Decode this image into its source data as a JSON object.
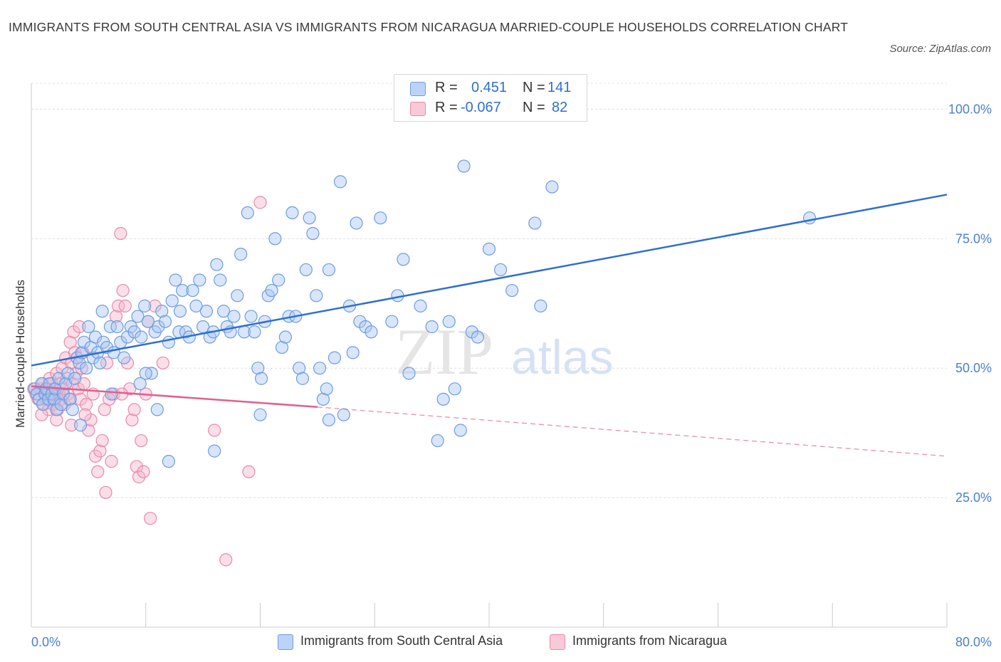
{
  "title": "IMMIGRANTS FROM SOUTH CENTRAL ASIA VS IMMIGRANTS FROM NICARAGUA MARRIED-COUPLE HOUSEHOLDS CORRELATION CHART",
  "source": "Source: ZipAtlas.com",
  "watermark": {
    "zip": "ZIP",
    "atlas": "atlas"
  },
  "colors": {
    "blue_fill": "#a9c6f3",
    "blue_stroke": "#6d9de0",
    "blue_line": "#2f6fce",
    "pink_fill": "#f7b6cb",
    "pink_stroke": "#e98aa8",
    "pink_line": "#e0608e",
    "grid": "#dddddd",
    "axis_text": "#4a7fd0"
  },
  "legend": {
    "rows": [
      {
        "r_label": "R =",
        "r_value": "0.451",
        "n_label": "N =",
        "n_value": "141"
      },
      {
        "r_label": "R =",
        "r_value": "-0.067",
        "n_label": "N =",
        "n_value": "82"
      }
    ]
  },
  "bottom_legend": [
    {
      "label": "Immigrants from South Central Asia"
    },
    {
      "label": "Immigrants from Nicaragua"
    }
  ],
  "chart_data": {
    "type": "scatter",
    "title": "IMMIGRANTS FROM SOUTH CENTRAL ASIA VS IMMIGRANTS FROM NICARAGUA MARRIED-COUPLE HOUSEHOLDS CORRELATION CHART",
    "xlabel": "",
    "ylabel": "Married-couple Households",
    "xlim": [
      0,
      80
    ],
    "ylim": [
      0,
      105
    ],
    "x_tick_labels": [
      "0.0%",
      "80.0%"
    ],
    "y_ticks": [
      25,
      50,
      75,
      100
    ],
    "y_tick_labels": [
      "25.0%",
      "50.0%",
      "75.0%",
      "100.0%"
    ],
    "grid": true,
    "legend_position": "top-center",
    "series": [
      {
        "name": "Immigrants from South Central Asia",
        "color": "#6d9de0",
        "r": 0.451,
        "n": 141,
        "trend": {
          "x": [
            0,
            80
          ],
          "y": [
            50.5,
            83.5
          ],
          "style": "solid"
        },
        "points": [
          [
            0.3,
            46
          ],
          [
            0.5,
            45
          ],
          [
            0.7,
            44
          ],
          [
            0.9,
            47
          ],
          [
            1.0,
            43
          ],
          [
            1.2,
            45
          ],
          [
            1.3,
            46
          ],
          [
            1.5,
            44
          ],
          [
            1.6,
            47
          ],
          [
            1.8,
            45
          ],
          [
            2.0,
            44
          ],
          [
            2.1,
            46
          ],
          [
            2.2,
            42
          ],
          [
            2.4,
            48
          ],
          [
            2.6,
            43
          ],
          [
            2.8,
            45
          ],
          [
            3.0,
            47
          ],
          [
            3.2,
            49
          ],
          [
            3.4,
            44
          ],
          [
            3.6,
            42
          ],
          [
            3.8,
            48
          ],
          [
            4.0,
            52
          ],
          [
            4.2,
            51
          ],
          [
            4.4,
            53
          ],
          [
            4.6,
            55
          ],
          [
            4.8,
            50
          ],
          [
            5.0,
            58
          ],
          [
            5.2,
            54
          ],
          [
            5.4,
            52
          ],
          [
            5.6,
            56
          ],
          [
            5.8,
            53
          ],
          [
            6.0,
            51
          ],
          [
            6.3,
            55
          ],
          [
            6.6,
            54
          ],
          [
            6.9,
            58
          ],
          [
            7.2,
            53
          ],
          [
            7.5,
            58
          ],
          [
            7.8,
            55
          ],
          [
            8.1,
            52
          ],
          [
            8.4,
            56
          ],
          [
            8.7,
            58
          ],
          [
            9.0,
            57
          ],
          [
            9.3,
            60
          ],
          [
            9.6,
            56
          ],
          [
            9.9,
            62
          ],
          [
            10.2,
            59
          ],
          [
            10.5,
            49
          ],
          [
            10.8,
            57
          ],
          [
            11.1,
            58
          ],
          [
            11.4,
            61
          ],
          [
            11.7,
            59
          ],
          [
            12.0,
            55
          ],
          [
            12.3,
            63
          ],
          [
            12.6,
            67
          ],
          [
            12.9,
            57
          ],
          [
            13.2,
            65
          ],
          [
            13.5,
            57
          ],
          [
            13.8,
            56
          ],
          [
            14.1,
            65
          ],
          [
            14.4,
            62
          ],
          [
            14.7,
            67
          ],
          [
            15.0,
            58
          ],
          [
            15.3,
            61
          ],
          [
            15.6,
            56
          ],
          [
            15.9,
            57
          ],
          [
            16.2,
            70
          ],
          [
            16.5,
            67
          ],
          [
            16.8,
            61
          ],
          [
            17.1,
            58
          ],
          [
            17.4,
            57
          ],
          [
            17.7,
            60
          ],
          [
            18.0,
            64
          ],
          [
            18.3,
            72
          ],
          [
            18.6,
            57
          ],
          [
            18.9,
            80
          ],
          [
            19.2,
            60
          ],
          [
            19.5,
            57
          ],
          [
            19.8,
            50
          ],
          [
            20.1,
            48
          ],
          [
            20.4,
            59
          ],
          [
            20.7,
            64
          ],
          [
            21.0,
            65
          ],
          [
            21.3,
            75
          ],
          [
            21.6,
            67
          ],
          [
            21.9,
            54
          ],
          [
            22.2,
            56
          ],
          [
            22.5,
            60
          ],
          [
            22.8,
            80
          ],
          [
            23.1,
            60
          ],
          [
            23.4,
            50
          ],
          [
            23.7,
            48
          ],
          [
            24.0,
            69
          ],
          [
            24.3,
            79
          ],
          [
            24.6,
            76
          ],
          [
            24.9,
            64
          ],
          [
            25.2,
            50
          ],
          [
            25.5,
            44
          ],
          [
            26.0,
            40
          ],
          [
            26.5,
            52
          ],
          [
            27.0,
            86
          ],
          [
            27.3,
            41
          ],
          [
            27.8,
            62
          ],
          [
            28.1,
            53
          ],
          [
            28.4,
            78
          ],
          [
            28.7,
            59
          ],
          [
            29.2,
            58
          ],
          [
            29.7,
            57
          ],
          [
            30.5,
            79
          ],
          [
            31.5,
            59
          ],
          [
            32.0,
            64
          ],
          [
            32.5,
            71
          ],
          [
            33.0,
            49
          ],
          [
            34.0,
            62
          ],
          [
            35.0,
            58
          ],
          [
            35.5,
            36
          ],
          [
            36.0,
            44
          ],
          [
            36.5,
            59
          ],
          [
            37.0,
            46
          ],
          [
            37.5,
            38
          ],
          [
            37.8,
            89
          ],
          [
            38.5,
            57
          ],
          [
            39.0,
            56
          ],
          [
            40.0,
            73
          ],
          [
            41.0,
            69
          ],
          [
            42.0,
            65
          ],
          [
            44.0,
            78
          ],
          [
            44.5,
            62
          ],
          [
            45.5,
            85
          ],
          [
            68.0,
            79
          ],
          [
            12.0,
            32
          ],
          [
            10.0,
            49
          ],
          [
            16.0,
            34
          ],
          [
            20.0,
            41
          ],
          [
            26.0,
            69
          ],
          [
            4.3,
            39
          ],
          [
            6.2,
            61
          ],
          [
            9.5,
            47
          ],
          [
            11.0,
            42
          ],
          [
            13.0,
            61
          ],
          [
            25.8,
            46
          ],
          [
            7.0,
            45
          ]
        ]
      },
      {
        "name": "Immigrants from Nicaragua",
        "color": "#e98aa8",
        "r": -0.067,
        "n": 82,
        "trend": {
          "x": [
            0,
            25,
            80
          ],
          "y": [
            46.5,
            42.5,
            33
          ],
          "style": "solid-then-dashed"
        },
        "points": [
          [
            0.2,
            46
          ],
          [
            0.4,
            45
          ],
          [
            0.6,
            44
          ],
          [
            0.8,
            46
          ],
          [
            1.0,
            47
          ],
          [
            1.1,
            43
          ],
          [
            1.2,
            45
          ],
          [
            1.3,
            44
          ],
          [
            1.4,
            46
          ],
          [
            1.5,
            42
          ],
          [
            1.6,
            48
          ],
          [
            1.7,
            45
          ],
          [
            1.8,
            47
          ],
          [
            1.9,
            43
          ],
          [
            2.0,
            46
          ],
          [
            2.1,
            44
          ],
          [
            2.2,
            49
          ],
          [
            2.3,
            42
          ],
          [
            2.4,
            45
          ],
          [
            2.5,
            47
          ],
          [
            2.6,
            44
          ],
          [
            2.7,
            50
          ],
          [
            2.8,
            46
          ],
          [
            2.9,
            43
          ],
          [
            3.0,
            52
          ],
          [
            3.1,
            48
          ],
          [
            3.2,
            45
          ],
          [
            3.3,
            44
          ],
          [
            3.4,
            55
          ],
          [
            3.5,
            51
          ],
          [
            3.6,
            47
          ],
          [
            3.7,
            57
          ],
          [
            3.8,
            53
          ],
          [
            3.9,
            49
          ],
          [
            4.0,
            52
          ],
          [
            4.1,
            46
          ],
          [
            4.2,
            58
          ],
          [
            4.3,
            44
          ],
          [
            4.4,
            50
          ],
          [
            4.5,
            53
          ],
          [
            4.6,
            47
          ],
          [
            4.8,
            43
          ],
          [
            5.0,
            38
          ],
          [
            5.2,
            40
          ],
          [
            5.4,
            45
          ],
          [
            5.6,
            33
          ],
          [
            5.8,
            30
          ],
          [
            6.0,
            34
          ],
          [
            6.2,
            36
          ],
          [
            6.4,
            42
          ],
          [
            6.6,
            51
          ],
          [
            6.8,
            44
          ],
          [
            7.0,
            32
          ],
          [
            7.2,
            45
          ],
          [
            7.4,
            60
          ],
          [
            7.6,
            62
          ],
          [
            7.8,
            76
          ],
          [
            8.0,
            65
          ],
          [
            8.2,
            62
          ],
          [
            8.4,
            51
          ],
          [
            8.6,
            46
          ],
          [
            8.8,
            40
          ],
          [
            9.0,
            42
          ],
          [
            9.2,
            31
          ],
          [
            9.4,
            29
          ],
          [
            9.6,
            36
          ],
          [
            9.8,
            30
          ],
          [
            10.0,
            45
          ],
          [
            10.2,
            59
          ],
          [
            10.4,
            21
          ],
          [
            10.8,
            62
          ],
          [
            11.5,
            51
          ],
          [
            16.0,
            38
          ],
          [
            17.0,
            13
          ],
          [
            19.0,
            30
          ],
          [
            20.0,
            82
          ],
          [
            6.5,
            26
          ],
          [
            3.5,
            39
          ],
          [
            4.7,
            41
          ],
          [
            7.9,
            45
          ],
          [
            0.9,
            41
          ],
          [
            2.2,
            40
          ]
        ]
      }
    ]
  }
}
